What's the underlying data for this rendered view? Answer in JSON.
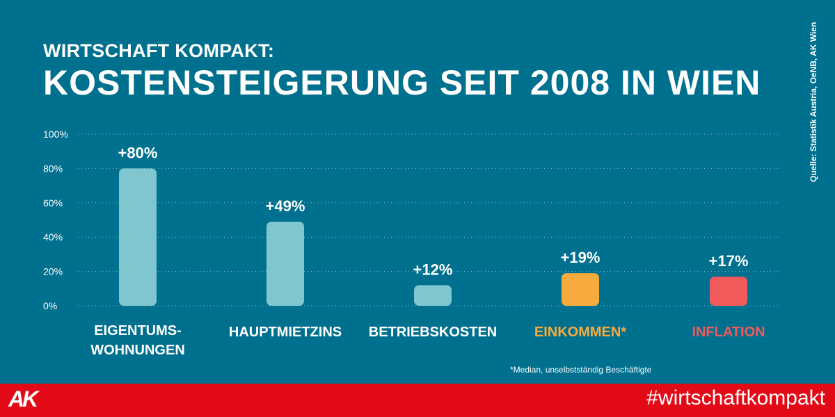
{
  "header": {
    "subtitle": "WIRTSCHAFT KOMPAKT:",
    "title": "KOSTENSTEIGERUNG SEIT 2008 IN WIEN"
  },
  "source": "Quelle: Statistik Austria, OeNB, AK Wien",
  "footnote": "*Median, unselbstständig Beschäftigte",
  "footer": {
    "logo": "AK",
    "hashtag": "#wirtschaftkompakt"
  },
  "colors": {
    "background": "#00708f",
    "bar_default": "#7fc6cf",
    "einkommen": "#f7aa3d",
    "inflation": "#f05a5b",
    "footer": "#e20a17"
  },
  "chart_data": {
    "type": "bar",
    "title": "KOSTENSTEIGERUNG SEIT 2008 IN WIEN",
    "ylim": [
      0,
      100
    ],
    "yticks": [
      "0%",
      "20%",
      "40%",
      "60%",
      "80%",
      "100%"
    ],
    "ytick_values": [
      0,
      20,
      40,
      60,
      80,
      100
    ],
    "categories": [
      [
        "EIGENTUMS-",
        "WOHNUNGEN"
      ],
      [
        "HAUPTMIETZINS"
      ],
      [
        "BETRIEBSKOSTEN"
      ],
      [
        "EINKOMMEN*"
      ],
      [
        "INFLATION"
      ]
    ],
    "values": [
      80,
      49,
      12,
      19,
      17
    ],
    "value_labels": [
      "+80%",
      "+49%",
      "+12%",
      "+19%",
      "+17%"
    ],
    "bar_colors": [
      "#7fc6cf",
      "#7fc6cf",
      "#7fc6cf",
      "#f7aa3d",
      "#f05a5b"
    ],
    "category_colors": [
      "#ffffff",
      "#ffffff",
      "#ffffff",
      "#f7aa3d",
      "#f05a5b"
    ]
  }
}
